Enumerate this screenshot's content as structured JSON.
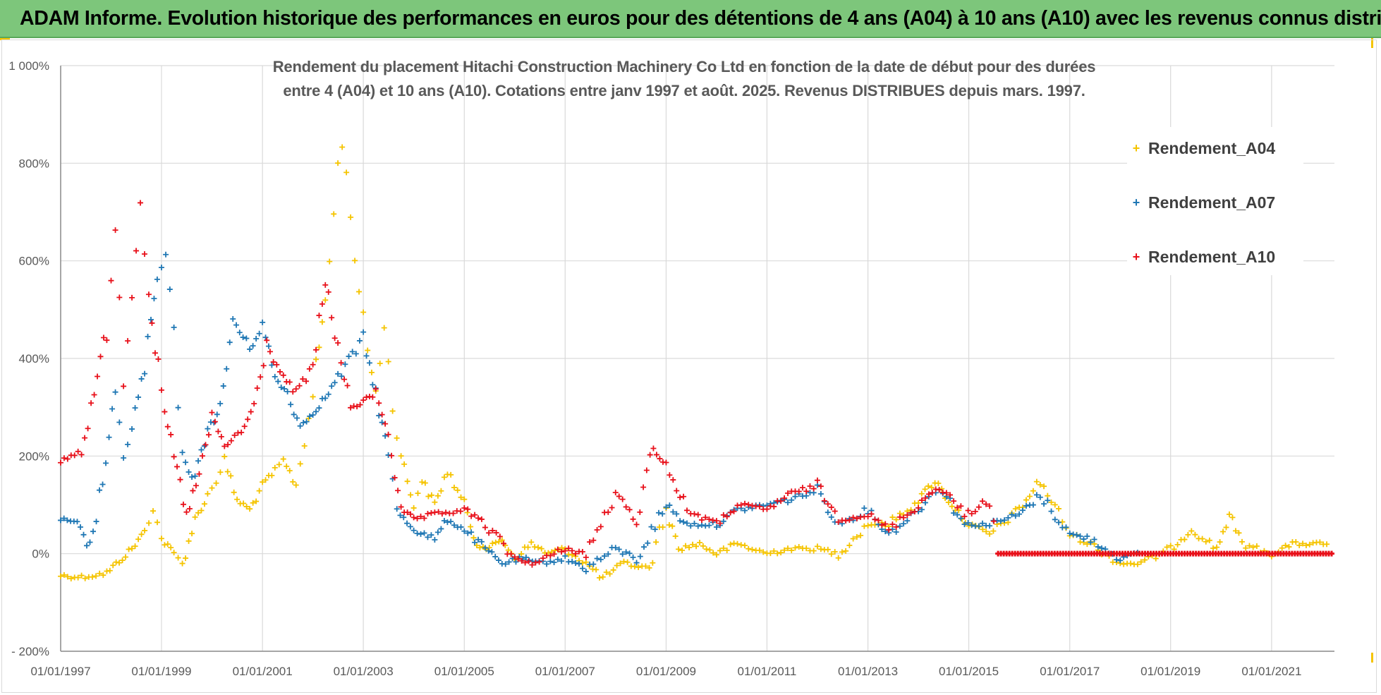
{
  "banner": {
    "title": "ADAM Informe. Evolution historique des performances en euros pour des détentions de 4 ans (A04) à 10 ans (A10) avec les revenus connus distribués"
  },
  "colors": {
    "banner_bg": "#7dc67b",
    "a04": "#f5c400",
    "a07": "#1f77b4",
    "a10": "#e8101a",
    "gridline": "#d9d9d9",
    "axis_text": "#595959"
  },
  "chart_data": {
    "type": "scatter",
    "title_line1": "Rendement du placement Hitachi Construction Machinery Co Ltd en fonction de la date de début pour des durées",
    "title_line2": "entre 4 (A04) et 10 ans (A10). Cotations entre janv 1997 et août. 2025. Revenus DISTRIBUES depuis mars. 1997.",
    "x_type": "date",
    "x_range": [
      "1997-01-01",
      "2022-04-01"
    ],
    "y_range": [
      -200,
      1000
    ],
    "y_unit": "%",
    "grid": true,
    "legend_position": "right",
    "marker": "+",
    "y_ticks": [
      {
        "value": 1000,
        "label": "1 000%"
      },
      {
        "value": 800,
        "label": "800%"
      },
      {
        "value": 600,
        "label": "600%"
      },
      {
        "value": 400,
        "label": "400%"
      },
      {
        "value": 200,
        "label": "200%"
      },
      {
        "value": 0,
        "label": "0%"
      },
      {
        "value": -200,
        "label": "- 200%"
      }
    ],
    "x_ticks": [
      {
        "value": "1997-01-01",
        "label": "01/01/1997"
      },
      {
        "value": "1999-01-01",
        "label": "01/01/1999"
      },
      {
        "value": "2001-01-01",
        "label": "01/01/2001"
      },
      {
        "value": "2003-01-01",
        "label": "01/01/2003"
      },
      {
        "value": "2005-01-01",
        "label": "01/01/2005"
      },
      {
        "value": "2007-01-01",
        "label": "01/01/2007"
      },
      {
        "value": "2009-01-01",
        "label": "01/01/2009"
      },
      {
        "value": "2011-01-01",
        "label": "01/01/2011"
      },
      {
        "value": "2013-01-01",
        "label": "01/01/2013"
      },
      {
        "value": "2015-01-01",
        "label": "01/01/2015"
      },
      {
        "value": "2017-01-01",
        "label": "01/01/2017"
      },
      {
        "value": "2019-01-01",
        "label": "01/01/2019"
      },
      {
        "value": "2021-01-01",
        "label": "01/01/2021"
      }
    ],
    "series": [
      {
        "name": "Rendement_A04",
        "color": "#f5c400",
        "points": [
          [
            "1997-01-01",
            -45
          ],
          [
            "1997-06-01",
            -48
          ],
          [
            "1997-12-01",
            -40
          ],
          [
            "1998-03-01",
            -15
          ],
          [
            "1998-06-01",
            10
          ],
          [
            "1998-09-01",
            45
          ],
          [
            "1998-11-01",
            95
          ],
          [
            "1999-01-01",
            30
          ],
          [
            "1999-04-01",
            0
          ],
          [
            "1999-06-01",
            -20
          ],
          [
            "1999-09-01",
            70
          ],
          [
            "1999-12-01",
            120
          ],
          [
            "2000-02-01",
            150
          ],
          [
            "2000-04-01",
            190
          ],
          [
            "2000-07-01",
            110
          ],
          [
            "2000-10-01",
            90
          ],
          [
            "2001-01-01",
            140
          ],
          [
            "2001-04-01",
            170
          ],
          [
            "2001-06-01",
            190
          ],
          [
            "2001-09-01",
            140
          ],
          [
            "2001-11-01",
            230
          ],
          [
            "2002-01-01",
            330
          ],
          [
            "2002-04-01",
            520
          ],
          [
            "2002-06-01",
            690
          ],
          [
            "2002-07-01",
            800
          ],
          [
            "2002-08-01",
            850
          ],
          [
            "2002-10-01",
            690
          ],
          [
            "2002-12-01",
            540
          ],
          [
            "2003-02-01",
            420
          ],
          [
            "2003-04-01",
            330
          ],
          [
            "2003-06-01",
            470
          ],
          [
            "2003-08-01",
            300
          ],
          [
            "2003-10-01",
            200
          ],
          [
            "2004-01-01",
            100
          ],
          [
            "2004-03-01",
            150
          ],
          [
            "2004-06-01",
            100
          ],
          [
            "2004-09-01",
            170
          ],
          [
            "2005-01-01",
            100
          ],
          [
            "2005-04-01",
            20
          ],
          [
            "2005-07-01",
            10
          ],
          [
            "2005-10-01",
            30
          ],
          [
            "2006-01-01",
            -10
          ],
          [
            "2006-05-01",
            20
          ],
          [
            "2006-09-01",
            0
          ],
          [
            "2007-01-01",
            10
          ],
          [
            "2007-06-01",
            -20
          ],
          [
            "2007-10-01",
            -50
          ],
          [
            "2008-03-01",
            -20
          ],
          [
            "2008-09-01",
            -30
          ],
          [
            "2009-01-01",
            90
          ],
          [
            "2009-04-01",
            10
          ],
          [
            "2009-09-01",
            20
          ],
          [
            "2010-01-01",
            0
          ],
          [
            "2010-06-01",
            20
          ],
          [
            "2011-01-01",
            0
          ],
          [
            "2011-06-01",
            10
          ],
          [
            "2012-01-01",
            10
          ],
          [
            "2012-06-01",
            0
          ],
          [
            "2013-01-01",
            60
          ],
          [
            "2013-06-01",
            60
          ],
          [
            "2014-01-01",
            110
          ],
          [
            "2014-05-01",
            150
          ],
          [
            "2014-09-01",
            100
          ],
          [
            "2015-01-01",
            60
          ],
          [
            "2015-06-01",
            40
          ],
          [
            "2016-01-01",
            90
          ],
          [
            "2016-06-01",
            150
          ],
          [
            "2017-01-01",
            40
          ],
          [
            "2017-06-01",
            20
          ],
          [
            "2018-01-01",
            -20
          ],
          [
            "2018-06-01",
            -20
          ],
          [
            "2019-01-01",
            10
          ],
          [
            "2019-06-01",
            50
          ],
          [
            "2019-12-01",
            10
          ],
          [
            "2020-03-01",
            80
          ],
          [
            "2020-06-01",
            20
          ],
          [
            "2021-01-01",
            0
          ],
          [
            "2021-06-01",
            20
          ],
          [
            "2022-03-01",
            20
          ]
        ]
      },
      {
        "name": "Rendement_A07",
        "color": "#1f77b4",
        "points": [
          [
            "1997-01-01",
            70
          ],
          [
            "1997-05-01",
            60
          ],
          [
            "1997-08-01",
            10
          ],
          [
            "1997-11-01",
            150
          ],
          [
            "1998-02-01",
            320
          ],
          [
            "1998-04-01",
            200
          ],
          [
            "1998-06-01",
            260
          ],
          [
            "1998-09-01",
            380
          ],
          [
            "1998-12-01",
            560
          ],
          [
            "1999-02-01",
            610
          ],
          [
            "1999-04-01",
            440
          ],
          [
            "1999-06-01",
            200
          ],
          [
            "1999-09-01",
            150
          ],
          [
            "1999-12-01",
            260
          ],
          [
            "2000-03-01",
            290
          ],
          [
            "2000-06-01",
            480
          ],
          [
            "2000-10-01",
            420
          ],
          [
            "2001-01-01",
            470
          ],
          [
            "2001-04-01",
            360
          ],
          [
            "2001-07-01",
            330
          ],
          [
            "2001-10-01",
            260
          ],
          [
            "2002-01-01",
            290
          ],
          [
            "2002-04-01",
            320
          ],
          [
            "2002-07-01",
            360
          ],
          [
            "2003-01-01",
            440
          ],
          [
            "2003-04-01",
            330
          ],
          [
            "2003-07-01",
            200
          ],
          [
            "2003-09-01",
            90
          ],
          [
            "2004-01-01",
            50
          ],
          [
            "2004-06-01",
            30
          ],
          [
            "2004-09-01",
            70
          ],
          [
            "2005-01-01",
            50
          ],
          [
            "2005-06-01",
            10
          ],
          [
            "2005-10-01",
            -20
          ],
          [
            "2006-03-01",
            -10
          ],
          [
            "2006-06-01",
            -20
          ],
          [
            "2007-01-01",
            -10
          ],
          [
            "2007-06-01",
            -30
          ],
          [
            "2008-01-01",
            10
          ],
          [
            "2008-06-01",
            -10
          ],
          [
            "2009-01-01",
            100
          ],
          [
            "2009-06-01",
            60
          ],
          [
            "2010-01-01",
            60
          ],
          [
            "2010-06-01",
            90
          ],
          [
            "2011-01-01",
            100
          ],
          [
            "2011-06-01",
            110
          ],
          [
            "2012-01-01",
            130
          ],
          [
            "2012-06-01",
            60
          ],
          [
            "2013-01-01",
            90
          ],
          [
            "2013-06-01",
            40
          ],
          [
            "2014-01-01",
            90
          ],
          [
            "2014-06-01",
            140
          ],
          [
            "2014-12-01",
            60
          ],
          [
            "2015-06-01",
            60
          ],
          [
            "2016-01-01",
            80
          ],
          [
            "2016-06-01",
            120
          ],
          [
            "2017-01-01",
            40
          ],
          [
            "2017-06-01",
            30
          ],
          [
            "2018-01-01",
            -10
          ],
          [
            "2018-06-01",
            0
          ]
        ]
      },
      {
        "name": "Rendement_A10",
        "color": "#e8101a",
        "points": [
          [
            "1997-01-01",
            190
          ],
          [
            "1997-06-01",
            210
          ],
          [
            "1997-09-01",
            330
          ],
          [
            "1997-12-01",
            460
          ],
          [
            "1998-02-01",
            680
          ],
          [
            "1998-04-01",
            360
          ],
          [
            "1998-06-01",
            540
          ],
          [
            "1998-08-01",
            720
          ],
          [
            "1998-10-01",
            540
          ],
          [
            "1999-01-01",
            320
          ],
          [
            "1999-04-01",
            200
          ],
          [
            "1999-07-01",
            80
          ],
          [
            "1999-10-01",
            160
          ],
          [
            "2000-01-01",
            280
          ],
          [
            "2000-04-01",
            220
          ],
          [
            "2000-08-01",
            250
          ],
          [
            "2000-11-01",
            300
          ],
          [
            "2001-02-01",
            430
          ],
          [
            "2001-06-01",
            360
          ],
          [
            "2001-09-01",
            330
          ],
          [
            "2002-01-01",
            380
          ],
          [
            "2002-04-01",
            560
          ],
          [
            "2002-07-01",
            420
          ],
          [
            "2002-10-01",
            300
          ],
          [
            "2003-01-01",
            310
          ],
          [
            "2003-04-01",
            330
          ],
          [
            "2003-07-01",
            250
          ],
          [
            "2003-10-01",
            90
          ],
          [
            "2004-01-01",
            70
          ],
          [
            "2004-06-01",
            80
          ],
          [
            "2005-01-01",
            90
          ],
          [
            "2005-06-01",
            60
          ],
          [
            "2006-01-01",
            -10
          ],
          [
            "2006-06-01",
            -20
          ],
          [
            "2007-01-01",
            10
          ],
          [
            "2007-06-01",
            0
          ],
          [
            "2008-01-01",
            120
          ],
          [
            "2008-06-01",
            70
          ],
          [
            "2008-10-01",
            220
          ],
          [
            "2009-01-01",
            180
          ],
          [
            "2009-06-01",
            90
          ],
          [
            "2010-01-01",
            60
          ],
          [
            "2010-06-01",
            100
          ],
          [
            "2011-01-01",
            90
          ],
          [
            "2011-06-01",
            120
          ],
          [
            "2012-01-01",
            140
          ],
          [
            "2012-06-01",
            70
          ],
          [
            "2013-01-01",
            80
          ],
          [
            "2013-06-01",
            50
          ],
          [
            "2014-01-01",
            100
          ],
          [
            "2014-06-01",
            140
          ],
          [
            "2014-12-01",
            80
          ],
          [
            "2015-06-01",
            110
          ],
          [
            "2015-08-01",
            0
          ],
          [
            "2022-04-01",
            0
          ]
        ]
      }
    ]
  }
}
